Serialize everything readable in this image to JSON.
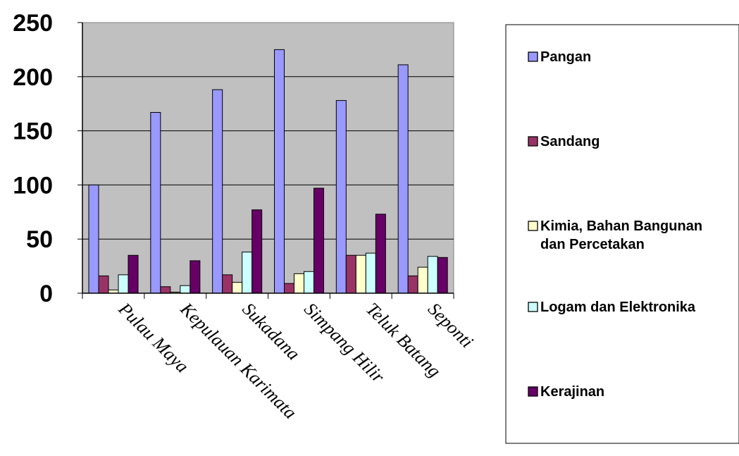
{
  "chart_data": {
    "type": "bar",
    "title": "",
    "xlabel": "",
    "ylabel": "",
    "ylim": [
      0,
      250
    ],
    "yticks": [
      0,
      50,
      100,
      150,
      200,
      250
    ],
    "grid": true,
    "legend_position": "right",
    "categories": [
      "Pulau Maya",
      "Kepulauan Karimata",
      "Sukadana",
      "Simpang Hilir",
      "Teluk Batang",
      "Seponti"
    ],
    "series": [
      {
        "name": "Pangan",
        "color": "#9999ff",
        "values": [
          100,
          167,
          188,
          225,
          178,
          211
        ]
      },
      {
        "name": "Sandang",
        "color": "#993366",
        "values": [
          16,
          6,
          17,
          9,
          35,
          16
        ]
      },
      {
        "name": "Kimia, Bahan Bangunan dan Percetakan",
        "color": "#ffffcc",
        "values": [
          3,
          1,
          10,
          18,
          35,
          24
        ]
      },
      {
        "name": "Logam dan Elektronika",
        "color": "#ccffff",
        "values": [
          17,
          7,
          38,
          20,
          37,
          34
        ]
      },
      {
        "name": "Kerajinan",
        "color": "#660066",
        "values": [
          35,
          30,
          77,
          97,
          73,
          33
        ]
      }
    ]
  }
}
